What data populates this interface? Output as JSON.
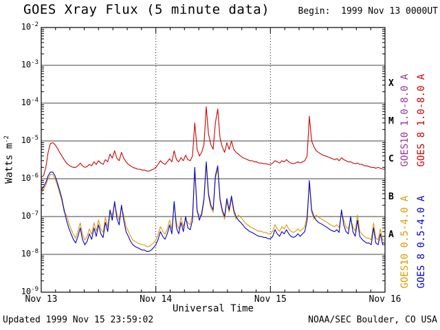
{
  "header": {
    "title": "GOES Xray Flux (5 minute data)",
    "begin": "Begin:  1999 Nov 13 0000UT"
  },
  "axes": {
    "ylabel": "Watts m",
    "ylabel_exp": "-2",
    "xlabel": "Universal Time",
    "x_tick_labels": [
      "Nov 13",
      "Nov 14",
      "Nov 15",
      "Nov 16"
    ],
    "y_tick_exponents": [
      -2,
      -3,
      -4,
      -5,
      -6,
      -7,
      -8,
      -9
    ]
  },
  "class_bands": [
    {
      "letter": "X",
      "center_exp": -3.5
    },
    {
      "letter": "M",
      "center_exp": -4.5
    },
    {
      "letter": "C",
      "center_exp": -5.5
    },
    {
      "letter": "B",
      "center_exp": -6.5
    },
    {
      "letter": "A",
      "center_exp": -7.5
    }
  ],
  "right_labels": [
    {
      "text": "GOES10 1.0-8.0 A",
      "color": "#993399"
    },
    {
      "text": "GOES 8 1.0-8.0 A",
      "color": "#cc0000"
    },
    {
      "text": "GOES10 0.5-4.0 A",
      "color": "#dd9900"
    },
    {
      "text": "GOES 8 0.5-4.0 A",
      "color": "#0000cc"
    }
  ],
  "footer": {
    "updated": "Updated 1999 Nov 15 23:59:02",
    "credit": "NOAA/SEC Boulder, CO USA"
  },
  "chart_data": {
    "type": "line",
    "title": "GOES Xray Flux (5 minute data)",
    "xlabel": "Universal Time",
    "ylabel": "Watts m^-2",
    "x_unit": "days since 1999 Nov 13 00:00 UT",
    "x_start": 0,
    "x_step": 0.02,
    "xlim": [
      0,
      3
    ],
    "y_scale": "log",
    "ylim": [
      1e-09,
      0.01
    ],
    "grid": "solid horizontal line per decade; dotted vertical lines at day boundaries",
    "legend_position": "right side, rotated",
    "flare_class_labels": [
      "X",
      "M",
      "C",
      "B",
      "A"
    ],
    "hidden_series_note": "GOES10 1.0-8.0 A trace overlaps GOES 8 1.0-8.0 A trace",
    "series": [
      {
        "name": "GOES10 0.5-4.0 A",
        "color": "#dd9900",
        "values": [
          4.2e-07,
          5.1e-07,
          6.8e-07,
          1e-06,
          1.3e-06,
          1.3e-06,
          1e-06,
          6.8e-07,
          4.2e-07,
          2.6e-07,
          1.3e-07,
          1.1e-07,
          6.8e-08,
          4.7e-08,
          3.4e-08,
          2.7e-08,
          4.1e-08,
          6.8e-08,
          3.4e-08,
          2.4e-08,
          3e-08,
          4.7e-08,
          3.4e-08,
          6.8e-08,
          4.1e-08,
          8.1e-08,
          4.7e-08,
          3.8e-08,
          9.5e-08,
          5.4e-08,
          1.3e-07,
          1.1e-07,
          2.1e-07,
          1.2e-07,
          8.1e-08,
          1.7e-07,
          1.1e-07,
          5.4e-08,
          4.1e-08,
          3e-08,
          2.4e-08,
          2.2e-08,
          2e-08,
          1.9e-08,
          1.8e-08,
          1.8e-08,
          1.6e-08,
          1.6e-08,
          1.8e-08,
          2e-08,
          2.4e-08,
          3.4e-08,
          5.4e-08,
          4.1e-08,
          3.4e-08,
          4.7e-08,
          8.1e-08,
          4.7e-08,
          2.1e-07,
          6.8e-08,
          4.7e-08,
          9.5e-08,
          5.4e-08,
          8.5e-08,
          6.8e-08,
          6.1e-08,
          1.1e-07,
          1.7e-06,
          1.3e-07,
          1.1e-07,
          1e-07,
          2.6e-07,
          2.4e-06,
          3.4e-07,
          1.7e-07,
          1.3e-07,
          1e-06,
          1.9e-06,
          2.6e-07,
          1.3e-07,
          8.5e-08,
          2.6e-07,
          1.3e-07,
          3e-07,
          1.3e-07,
          8.5e-08,
          1.1e-07,
          9.5e-08,
          8.1e-08,
          6.8e-08,
          6.1e-08,
          5.4e-08,
          5.1e-08,
          4.7e-08,
          4.3e-08,
          4.1e-08,
          4.1e-08,
          3.8e-08,
          3.8e-08,
          3.5e-08,
          3.5e-08,
          4.1e-08,
          6.1e-08,
          4.7e-08,
          4.1e-08,
          5.4e-08,
          4.7e-08,
          6.1e-08,
          4.7e-08,
          4.1e-08,
          3.8e-08,
          4.1e-08,
          4.7e-08,
          4.1e-08,
          4.7e-08,
          5.4e-08,
          1.1e-07,
          7.7e-07,
          1.3e-07,
          8.5e-08,
          1.1e-07,
          9.5e-08,
          8.8e-08,
          8.1e-08,
          7.4e-08,
          6.8e-08,
          6.1e-08,
          5.7e-08,
          5.4e-08,
          6.1e-08,
          5.1e-08,
          1.3e-07,
          8.1e-08,
          5.4e-08,
          4.7e-08,
          8.5e-08,
          5.4e-08,
          4.1e-08,
          1.1e-07,
          4.1e-08,
          3.4e-08,
          3e-08,
          2.7e-08,
          2.7e-08,
          2.4e-08,
          6.8e-08,
          2.7e-08,
          2.4e-08,
          4.7e-08,
          2.4e-08,
          2.4e-08
        ]
      },
      {
        "name": "GOES 8 0.5-4.0 A",
        "color": "#0000cc",
        "values": [
          5e-07,
          6e-07,
          8e-07,
          1.2e-06,
          1.5e-06,
          1.5e-06,
          1.2e-06,
          8e-07,
          5e-07,
          3e-07,
          1.5e-07,
          8e-08,
          5e-08,
          3.5e-08,
          2.5e-08,
          2e-08,
          3e-08,
          5e-08,
          2.5e-08,
          1.8e-08,
          2.2e-08,
          3.5e-08,
          2.5e-08,
          5e-08,
          3e-08,
          6e-08,
          3.5e-08,
          2.8e-08,
          7e-08,
          4e-08,
          1.5e-07,
          8e-08,
          2.5e-07,
          9e-08,
          6e-08,
          2e-07,
          8e-08,
          4e-08,
          3e-08,
          2.2e-08,
          1.8e-08,
          1.6e-08,
          1.5e-08,
          1.4e-08,
          1.3e-08,
          1.3e-08,
          1.2e-08,
          1.2e-08,
          1.3e-08,
          1.5e-08,
          1.8e-08,
          2.5e-08,
          4e-08,
          3e-08,
          2.5e-08,
          3.5e-08,
          6e-08,
          3.5e-08,
          2.5e-07,
          5e-08,
          3.5e-08,
          7e-08,
          4e-08,
          1e-07,
          5e-08,
          4.5e-08,
          8e-08,
          2e-06,
          1.5e-07,
          8e-08,
          1.2e-07,
          3e-07,
          2.8e-06,
          4e-07,
          2e-07,
          1.5e-07,
          1.2e-06,
          2.2e-06,
          3e-07,
          1.5e-07,
          1e-07,
          3e-07,
          1.5e-07,
          3.5e-07,
          1.5e-07,
          1e-07,
          8e-08,
          7e-08,
          6e-08,
          5e-08,
          4.5e-08,
          4e-08,
          3.8e-08,
          3.5e-08,
          3.2e-08,
          3e-08,
          3e-08,
          2.8e-08,
          2.8e-08,
          2.6e-08,
          2.6e-08,
          3e-08,
          4.5e-08,
          3.5e-08,
          3e-08,
          4e-08,
          3.5e-08,
          4.5e-08,
          3.5e-08,
          3e-08,
          2.8e-08,
          3e-08,
          3.5e-08,
          3e-08,
          3.5e-08,
          4e-08,
          8e-08,
          9e-07,
          1.5e-07,
          1e-07,
          8e-08,
          7e-08,
          6.5e-08,
          6e-08,
          5.5e-08,
          5e-08,
          4.5e-08,
          4.2e-08,
          4e-08,
          4.5e-08,
          3.8e-08,
          1.5e-07,
          6e-08,
          4e-08,
          3.5e-08,
          1e-07,
          4e-08,
          3e-08,
          8e-08,
          3e-08,
          2.5e-08,
          2.2e-08,
          2e-08,
          2e-08,
          1.8e-08,
          5e-08,
          2e-08,
          1.8e-08,
          3.5e-08,
          1.8e-08,
          1.8e-08
        ]
      },
      {
        "name": "GOES 8 1.0-8.0 A",
        "color": "#cc0000",
        "values": [
          1.1e-06,
          1.2e-06,
          2e-06,
          5e-06,
          8.5e-06,
          9e-06,
          8e-06,
          6.5e-06,
          5e-06,
          4e-06,
          3.2e-06,
          2.6e-06,
          2.3e-06,
          2.1e-06,
          2e-06,
          2e-06,
          2.2e-06,
          2.6e-06,
          2.2e-06,
          2e-06,
          2.1e-06,
          2.4e-06,
          2.2e-06,
          2.8e-06,
          2.4e-06,
          3e-06,
          2.6e-06,
          2.4e-06,
          3.2e-06,
          2.8e-06,
          4.5e-06,
          3.5e-06,
          5.5e-06,
          3.5e-06,
          3e-06,
          5e-06,
          3.5e-06,
          2.8e-06,
          2.4e-06,
          2.2e-06,
          2e-06,
          1.9e-06,
          1.8e-06,
          1.8e-06,
          1.7e-06,
          1.7e-06,
          1.6e-06,
          1.6e-06,
          1.7e-06,
          1.8e-06,
          2e-06,
          2.4e-06,
          3e-06,
          2.6e-06,
          2.4e-06,
          2.8e-06,
          3.4e-06,
          2.8e-06,
          5.5e-06,
          3.2e-06,
          2.8e-06,
          3.6e-06,
          3e-06,
          4.2e-06,
          3.2e-06,
          3e-06,
          4e-06,
          3e-05,
          6e-06,
          4e-06,
          5e-06,
          8e-06,
          8e-05,
          1.5e-05,
          8e-06,
          6e-06,
          3e-05,
          7e-05,
          1.2e-05,
          7e-06,
          5e-06,
          9e-06,
          6e-06,
          1e-05,
          6e-06,
          5e-06,
          4.5e-06,
          4e-06,
          3.6e-06,
          3.4e-06,
          3.2e-06,
          3e-06,
          3e-06,
          2.8e-06,
          2.8e-06,
          2.6e-06,
          2.6e-06,
          2.5e-06,
          2.5e-06,
          2.4e-06,
          2.4e-06,
          2.6e-06,
          3e-06,
          2.8e-06,
          2.6e-06,
          3e-06,
          2.8e-06,
          3.2e-06,
          2.8e-06,
          2.6e-06,
          2.5e-06,
          2.6e-06,
          2.8e-06,
          2.6e-06,
          2.8e-06,
          3e-06,
          4e-06,
          4.5e-05,
          1e-05,
          7e-06,
          5.5e-06,
          5e-06,
          4.5e-06,
          4.2e-06,
          4e-06,
          3.8e-06,
          3.6e-06,
          3.4e-06,
          3.2e-06,
          3.4e-06,
          3e-06,
          3.6e-06,
          3.2e-06,
          3e-06,
          2.8e-06,
          2.8e-06,
          2.6e-06,
          2.5e-06,
          2.6e-06,
          2.4e-06,
          2.4e-06,
          2.2e-06,
          2.2e-06,
          2.1e-06,
          2e-06,
          2e-06,
          1.9e-06,
          2e-06,
          1.9e-06,
          1.8e-06,
          1.8e-06
        ]
      }
    ]
  }
}
